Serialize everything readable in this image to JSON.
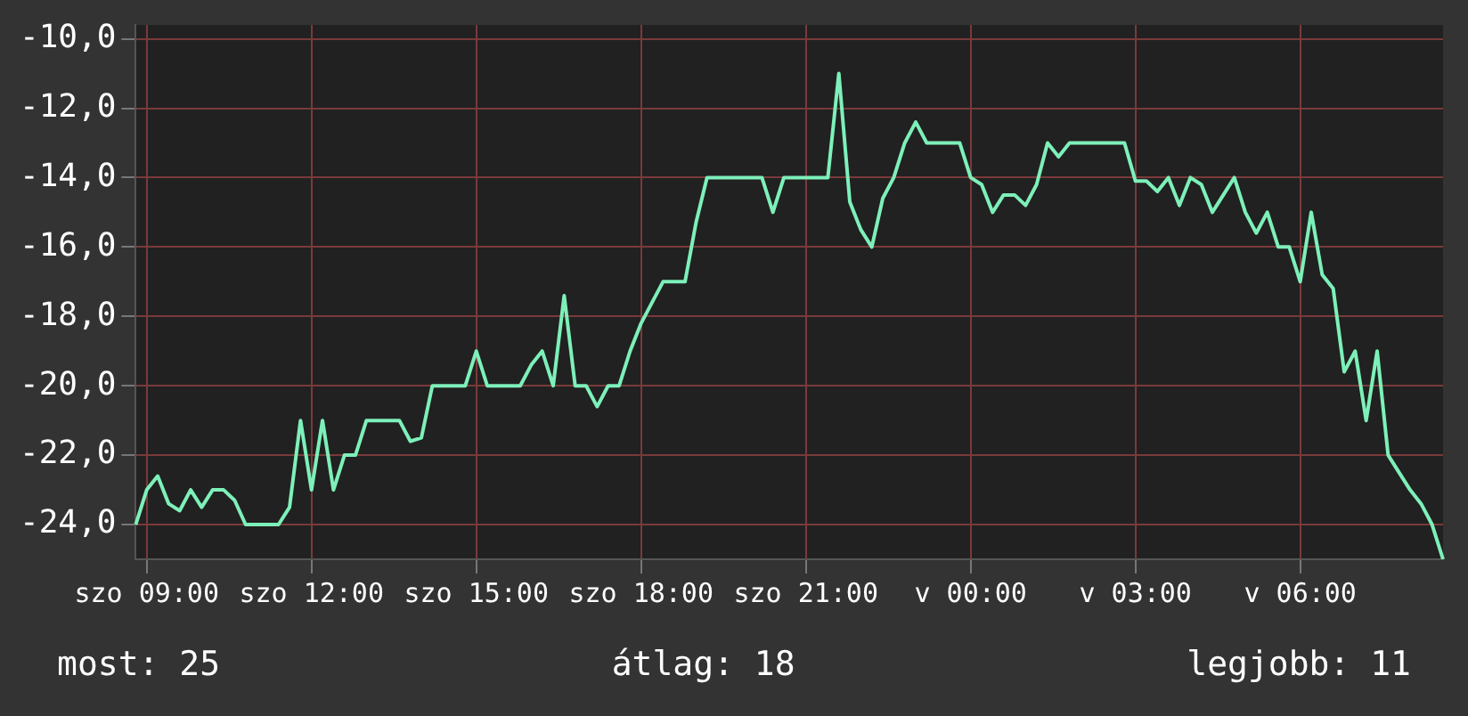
{
  "chart_data": {
    "type": "line",
    "color": "#7df0b9",
    "categories": [
      null,
      "szo 09:00",
      null,
      null,
      null,
      null,
      null,
      null,
      null,
      null,
      null,
      null,
      null,
      null,
      null,
      null,
      "szo 12:00",
      null,
      null,
      null,
      null,
      null,
      null,
      null,
      null,
      null,
      null,
      null,
      null,
      null,
      null,
      "szo 15:00",
      null,
      null,
      null,
      null,
      null,
      null,
      null,
      null,
      null,
      null,
      null,
      null,
      null,
      null,
      "szo 18:00",
      null,
      null,
      null,
      null,
      null,
      null,
      null,
      null,
      null,
      null,
      null,
      null,
      null,
      null,
      "szo 21:00",
      null,
      null,
      null,
      null,
      null,
      null,
      null,
      null,
      null,
      null,
      null,
      null,
      null,
      null,
      "v 00:00",
      null,
      null,
      null,
      null,
      null,
      null,
      null,
      null,
      null,
      null,
      null,
      null,
      null,
      null,
      "v 03:00",
      null,
      null,
      null,
      null,
      null,
      null,
      null,
      null,
      null,
      null,
      null,
      null,
      null,
      null,
      "v 06:00",
      null,
      null,
      null,
      null,
      null,
      null,
      null,
      null,
      null,
      null,
      null,
      null,
      null
    ],
    "values": [
      -24,
      -23,
      -22.6,
      -23.4,
      -23.6,
      -23,
      -23.5,
      -23,
      -23,
      -23.3,
      -24,
      -24,
      -24,
      -24,
      -23.5,
      -21,
      -23,
      -21,
      -23,
      -22,
      -22,
      -21,
      -21,
      -21,
      -21,
      -21.6,
      -21.5,
      -20,
      -20,
      -20,
      -20,
      -19,
      -20,
      -20,
      -20,
      -20,
      -19.4,
      -19,
      -20,
      -17.4,
      -20,
      -20,
      -20.6,
      -20,
      -20,
      -19,
      -18.2,
      -17.6,
      -17,
      -17,
      -17,
      -15.3,
      -14,
      -14,
      -14,
      -14,
      -14,
      -14,
      -15,
      -14,
      -14,
      -14,
      -14,
      -14,
      -11,
      -14.7,
      -15.5,
      -16,
      -14.6,
      -14,
      -13,
      -12.4,
      -13,
      -13,
      -13,
      -13,
      -14,
      -14.2,
      -15,
      -14.5,
      -14.5,
      -14.8,
      -14.2,
      -13,
      -13.4,
      -13,
      -13,
      -13,
      -13,
      -13,
      -13,
      -14.1,
      -14.1,
      -14.4,
      -14,
      -14.8,
      -14,
      -14.2,
      -15,
      -14.5,
      -14,
      -15,
      -15.6,
      -15,
      -16,
      -16,
      -17,
      -15,
      -16.8,
      -17.2,
      -19.6,
      -19,
      -21,
      -19,
      -22,
      -22.5,
      -23,
      -23.4,
      -24,
      -25
    ],
    "ylim": [
      -25,
      -9.6
    ],
    "yticks": [
      {
        "value": -24,
        "label": "-24,0"
      },
      {
        "value": -22,
        "label": "-22,0"
      },
      {
        "value": -20,
        "label": "-20,0"
      },
      {
        "value": -18,
        "label": "-18,0"
      },
      {
        "value": -16,
        "label": "-16,0"
      },
      {
        "value": -14,
        "label": "-14,0"
      },
      {
        "value": -12,
        "label": "-12,0"
      },
      {
        "value": -10,
        "label": "-10,0"
      }
    ],
    "grid": true,
    "marker": "none",
    "line_style": "solid",
    "annotations": [
      "most: 25",
      "átlag: 18",
      "legjobb: 11"
    ]
  }
}
